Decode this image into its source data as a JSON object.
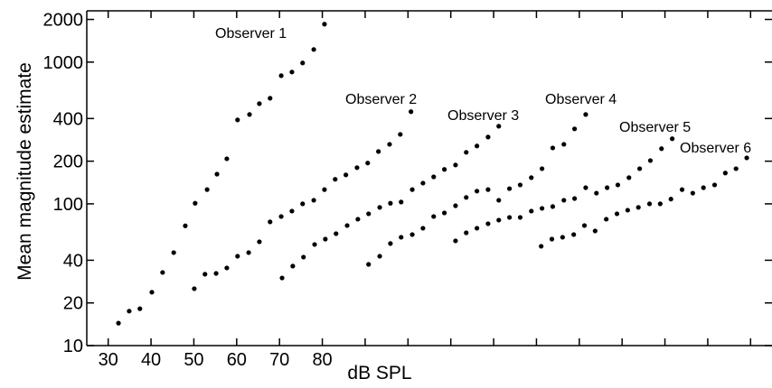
{
  "chart_data": {
    "type": "scatter",
    "log_y": true,
    "color": "#000000",
    "xlabel": "dB SPL",
    "ylabel": "Mean magnitude estimate",
    "xlim": [
      25,
      185
    ],
    "ylim": [
      10,
      2300
    ],
    "xticks": [
      30,
      40,
      50,
      60,
      70,
      80,
      {
        "value": 90,
        "label": null
      },
      {
        "value": 100,
        "label": null
      },
      {
        "value": 110,
        "label": null
      },
      {
        "value": 120,
        "label": null
      },
      {
        "value": 130,
        "label": null
      },
      {
        "value": 140,
        "label": null
      },
      {
        "value": 150,
        "label": null
      },
      {
        "value": 160,
        "label": null
      },
      {
        "value": 170,
        "label": null
      },
      {
        "value": 180,
        "label": null
      }
    ],
    "yticks": [
      10,
      20,
      40,
      100,
      200,
      400,
      1000,
      2000
    ],
    "series": [
      {
        "name": "Observer 1",
        "x": [
          32.4,
          34.9,
          37.4,
          40.2,
          42.7,
          45.3,
          48.0,
          50.3,
          53.1,
          55.4,
          57.7,
          60.2,
          63.0,
          65.3,
          67.8,
          70.4,
          72.9,
          75.4,
          78.0,
          80.5
        ],
        "values": [
          14.4,
          17.5,
          18.2,
          23.8,
          32.8,
          45.3,
          70,
          101,
          126,
          162,
          208,
          391,
          427,
          509,
          556,
          802,
          851,
          986,
          1228,
          1853
        ]
      },
      {
        "name": "Observer 2",
        "x": [
          50.1,
          52.6,
          55.2,
          57.7,
          60.2,
          62.8,
          65.3,
          67.8,
          70.4,
          72.9,
          75.4,
          78.0,
          80.5,
          83.0,
          85.5,
          88.1,
          90.6,
          93.1,
          95.7,
          98.2,
          100.7
        ],
        "values": [
          25.2,
          31.9,
          32.3,
          35.3,
          42.7,
          45.3,
          54,
          74.6,
          81.4,
          88.9,
          100,
          106,
          126,
          149,
          160,
          180,
          194,
          234,
          263,
          309,
          447
        ]
      },
      {
        "name": "Observer 3",
        "x": [
          70.6,
          73.1,
          75.6,
          78.2,
          80.7,
          83.2,
          85.8,
          88.3,
          90.8,
          93.4,
          95.9,
          98.4,
          101.0,
          103.5,
          106.0,
          108.5,
          111.1,
          113.6,
          116.1,
          118.7,
          121.2
        ],
        "values": [
          30,
          36.4,
          42.1,
          51.7,
          56.4,
          61.6,
          70.3,
          77.9,
          85.1,
          94.4,
          101,
          103,
          126,
          140,
          155,
          175,
          188,
          231,
          256,
          296,
          353
        ]
      },
      {
        "name": "Observer 4",
        "x": [
          90.8,
          93.4,
          95.9,
          98.4,
          101.0,
          103.5,
          106.0,
          108.5,
          111.1,
          113.6,
          116.1,
          118.7,
          121.2,
          123.7,
          126.2,
          128.8,
          131.3,
          133.8,
          136.4,
          138.9,
          141.5
        ],
        "values": [
          37.4,
          42.7,
          52.5,
          58.1,
          60.7,
          67.3,
          81.4,
          86.3,
          97,
          111,
          123,
          126,
          106,
          128,
          136,
          153,
          177,
          248,
          263,
          338,
          427
        ]
      },
      {
        "name": "Observer 5",
        "x": [
          111.1,
          113.6,
          116.1,
          118.7,
          121.2,
          123.7,
          126.2,
          128.8,
          131.3,
          133.8,
          136.4,
          138.9,
          141.5,
          144.0,
          146.5,
          149.0,
          151.6,
          154.1,
          156.6,
          159.2,
          161.7
        ],
        "values": [
          54.8,
          62.5,
          67.3,
          72.4,
          76.8,
          80.2,
          80.2,
          88.9,
          92.9,
          95.7,
          106,
          109,
          130,
          119,
          130,
          136,
          153,
          177,
          202,
          245,
          288
        ]
      },
      {
        "name": "Observer 6",
        "x": [
          131.1,
          133.6,
          136.1,
          138.7,
          141.2,
          143.7,
          146.3,
          148.8,
          151.3,
          153.8,
          156.4,
          158.9,
          161.4,
          164.0,
          166.5,
          169.0,
          171.6,
          174.1,
          176.6,
          179.1
        ],
        "values": [
          50.2,
          56.4,
          58.1,
          60.7,
          70.3,
          64.4,
          77.9,
          85.1,
          90.2,
          94.4,
          100,
          100,
          108,
          126,
          119,
          130,
          136,
          165,
          177,
          211
        ]
      }
    ]
  }
}
